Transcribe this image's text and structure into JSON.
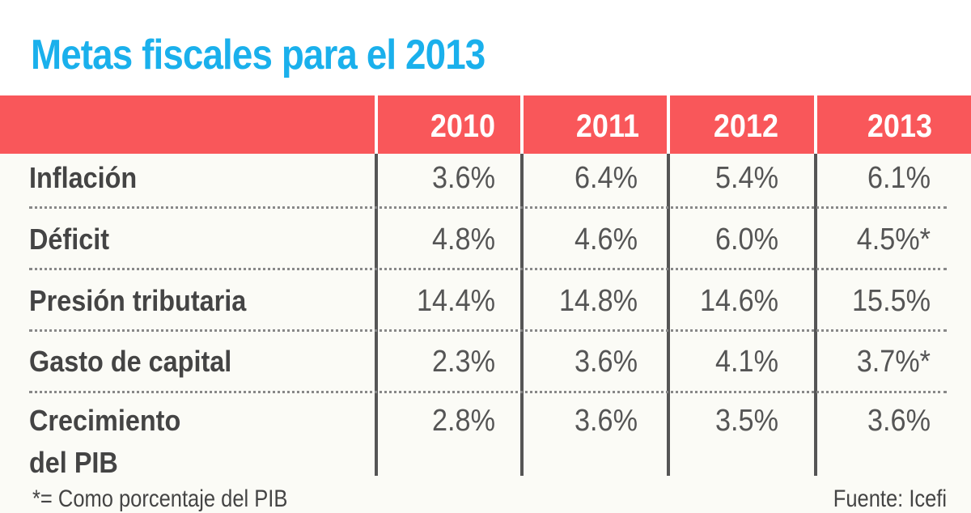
{
  "title": "Metas fiscales para el 2013",
  "columns": [
    "2010",
    "2011",
    "2012",
    "2013"
  ],
  "rows": [
    {
      "label": "Inflación",
      "values": [
        "3.6%",
        "6.4%",
        "5.4%",
        "6.1%"
      ]
    },
    {
      "label": "Déficit",
      "values": [
        "4.8%",
        "4.6%",
        "6.0%",
        "4.5%*"
      ]
    },
    {
      "label": "Presión tributaria",
      "values": [
        "14.4%",
        "14.8%",
        "14.6%",
        "15.5%"
      ]
    },
    {
      "label": "Gasto de capital",
      "values": [
        "2.3%",
        "3.6%",
        "4.1%",
        "3.7%*"
      ]
    },
    {
      "label": "Crecimiento",
      "label2": "del PIB",
      "values": [
        "2.8%",
        "3.6%",
        "3.5%",
        "3.6%"
      ]
    }
  ],
  "footnote": "*= Como porcentaje del PIB",
  "source": "Fuente: Icefi",
  "colors": {
    "title": "#1ab0ec",
    "header": "#f9575a"
  }
}
